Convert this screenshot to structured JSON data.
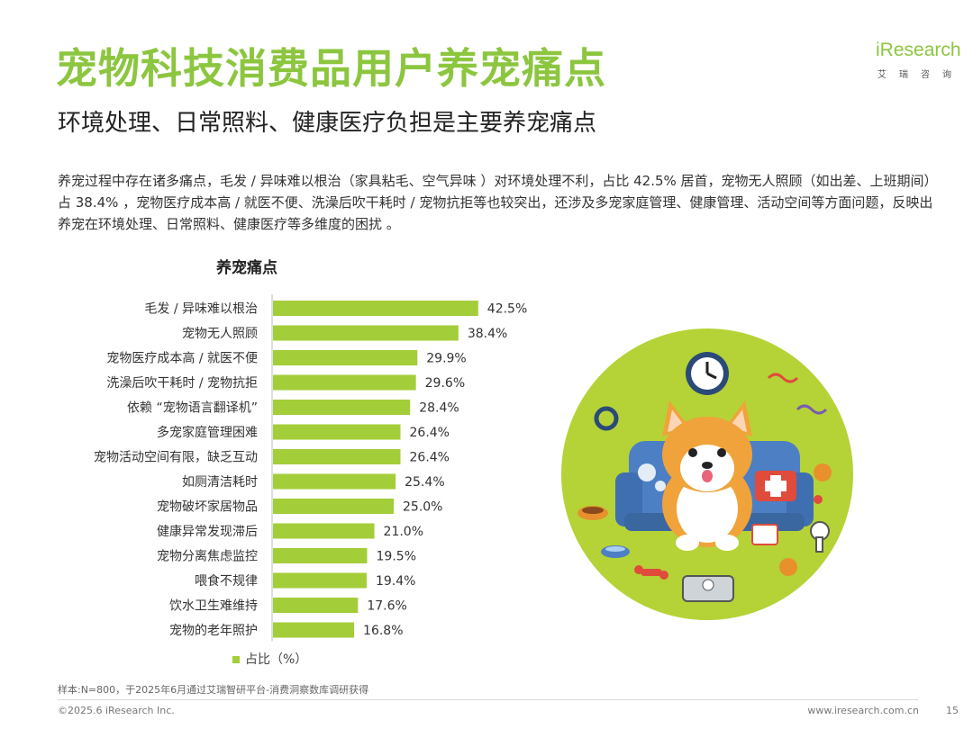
{
  "header": {
    "title": "宠物科技消费品用户养宠痛点",
    "subtitle": "环境处理、日常照料、健康医疗负担是主要养宠痛点",
    "logo_word": "iResearch",
    "logo_cn": "艾瑞咨询"
  },
  "description": "养宠过程中存在诸多痛点，毛发 / 异味难以根治（家具粘毛、空气异味 ）对环境处理不利，占比 42.5% 居首，宠物无人照顾（如出差、上班期间）占 38.4% ，宠物医疗成本高 / 就医不便、洗澡后吹干耗时 / 宠物抗拒等也较突出，还涉及多宠家庭管理、健康管理、活动空间等方面问题，反映出养宠在环境处理、日常照料、健康医疗等多维度的困扰 。",
  "chart_data": {
    "type": "bar",
    "orientation": "horizontal",
    "title": "养宠痛点",
    "categories": [
      "毛发 / 异味难以根治",
      "宠物无人照顾",
      "宠物医疗成本高 / 就医不便",
      "洗澡后吹干耗时 / 宠物抗拒",
      "依赖 “宠物语言翻译机”",
      "多宠家庭管理困难",
      "宠物活动空间有限，缺乏互动",
      "如厕清洁耗时",
      "宠物破坏家居物品",
      "健康异常发现滞后",
      "宠物分离焦虑监控",
      "喂食不规律",
      "饮水卫生难维持",
      "宠物的老年照护"
    ],
    "series": [
      {
        "name": "占比（%）",
        "values": [
          42.5,
          38.4,
          29.9,
          29.6,
          28.4,
          26.4,
          26.4,
          25.4,
          25.0,
          21.0,
          19.5,
          19.4,
          17.6,
          16.8
        ],
        "labels": [
          "42.5%",
          "38.4%",
          "29.9%",
          "29.6%",
          "28.4%",
          "26.4%",
          "26.4%",
          "25.4%",
          "25.0%",
          "21.0%",
          "19.5%",
          "19.4%",
          "17.6%",
          "16.8%"
        ]
      }
    ],
    "xlim": [
      0,
      50
    ],
    "grid": false,
    "legend": "bottom",
    "colors": {
      "bar": "#a3cd39",
      "axis": "#bfbfbf"
    }
  },
  "footer": {
    "note": "样本:N=800，于2025年6月通过艾瑞智研平台-消费洞察数库调研获得",
    "copyright": "©2025.6 iResearch Inc.",
    "website": "www.iresearch.com.cn",
    "page": "15"
  },
  "theme": {
    "accent": "#8cc63f",
    "illustration_bg": "#b5d336"
  }
}
